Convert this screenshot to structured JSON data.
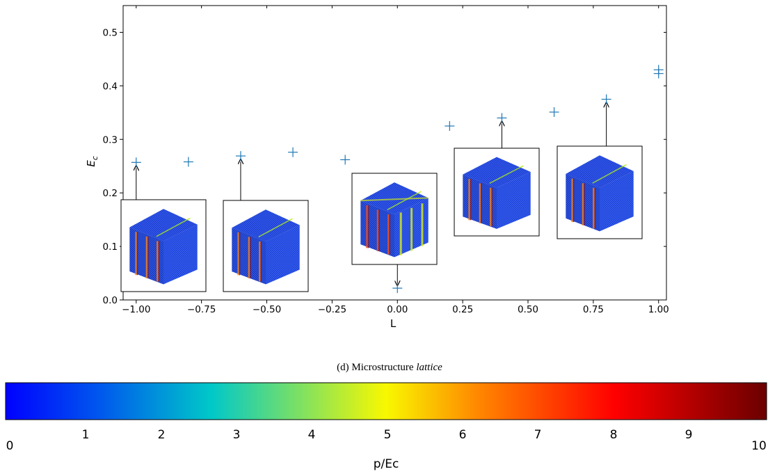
{
  "chart_data": {
    "type": "scatter",
    "xlabel": "L",
    "ylabel": "E",
    "ylabel_sub": "c",
    "xlim": [
      -1.05,
      1.03
    ],
    "ylim": [
      0.0,
      0.55
    ],
    "xticks": [
      -1.0,
      -0.75,
      -0.5,
      -0.25,
      0.0,
      0.25,
      0.5,
      0.75,
      1.0
    ],
    "xtick_labels": [
      "−1.00",
      "−0.75",
      "−0.50",
      "−0.25",
      "0.00",
      "0.25",
      "0.50",
      "0.75",
      "1.00"
    ],
    "yticks": [
      0.0,
      0.1,
      0.2,
      0.3,
      0.4,
      0.5
    ],
    "ytick_labels": [
      "0.0",
      "0.1",
      "0.2",
      "0.3",
      "0.4",
      "0.5"
    ],
    "grid": false,
    "marker": "+",
    "color": "#1f77b4",
    "points": [
      {
        "x": -1.0,
        "y": 0.257
      },
      {
        "x": -0.8,
        "y": 0.258
      },
      {
        "x": -0.6,
        "y": 0.269
      },
      {
        "x": -0.4,
        "y": 0.276
      },
      {
        "x": -0.2,
        "y": 0.262
      },
      {
        "x": 0.0,
        "y": 0.022
      },
      {
        "x": 0.2,
        "y": 0.325
      },
      {
        "x": 0.4,
        "y": 0.34
      },
      {
        "x": 0.6,
        "y": 0.351
      },
      {
        "x": 0.8,
        "y": 0.375
      },
      {
        "x": 1.0,
        "y": 0.423
      },
      {
        "x": 1.0,
        "y": 0.43
      }
    ],
    "insets": [
      {
        "x": -1.0,
        "y": 0.257
      },
      {
        "x": -0.6,
        "y": 0.269
      },
      {
        "x": 0.0,
        "y": 0.022
      },
      {
        "x": 0.4,
        "y": 0.34
      },
      {
        "x": 0.8,
        "y": 0.375
      }
    ]
  },
  "caption": {
    "label": "(d) Microstructure ",
    "label_italic": "lattice"
  },
  "colorbar": {
    "label": "p/Ec",
    "min": 0,
    "max": 10,
    "ticks": [
      "0",
      "1",
      "2",
      "3",
      "4",
      "5",
      "6",
      "7",
      "8",
      "9",
      "10"
    ],
    "colors": [
      "#0000ff",
      "#0055ee",
      "#00c8c8",
      "#f8f800",
      "#ff8800",
      "#ff0000",
      "#6a0000"
    ]
  }
}
